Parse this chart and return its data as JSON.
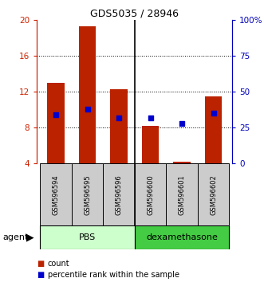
{
  "title": "GDS5035 / 28946",
  "samples": [
    "GSM596594",
    "GSM596595",
    "GSM596596",
    "GSM596600",
    "GSM596601",
    "GSM596602"
  ],
  "bar_values": [
    13.0,
    19.3,
    12.3,
    8.2,
    4.2,
    11.5
  ],
  "blue_dot_pct": [
    34.0,
    38.0,
    32.0,
    32.0,
    28.0,
    35.0
  ],
  "bar_color": "#bb2200",
  "dot_color": "#0000cc",
  "ylim_left": [
    4,
    20
  ],
  "ylim_right": [
    0,
    100
  ],
  "yticks_left": [
    4,
    8,
    12,
    16,
    20
  ],
  "yticks_right": [
    0,
    25,
    50,
    75,
    100
  ],
  "ytick_labels_right": [
    "0",
    "25",
    "50",
    "75",
    "100%"
  ],
  "groups": [
    {
      "label": "PBS",
      "color": "#ccffcc",
      "samples_idx": [
        0,
        1,
        2
      ]
    },
    {
      "label": "dexamethasone",
      "color": "#44cc44",
      "samples_idx": [
        3,
        4,
        5
      ]
    }
  ],
  "agent_label": "agent",
  "legend_count_label": "count",
  "legend_pct_label": "percentile rank within the sample",
  "bar_width": 0.55,
  "left_axis_color": "#cc2200",
  "right_axis_color": "#0000bb",
  "title_color": "#000000"
}
